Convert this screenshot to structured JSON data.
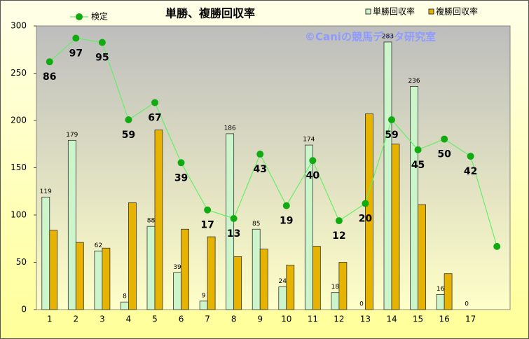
{
  "chart_data": {
    "type": "bar",
    "title": "単勝、複勝回収率",
    "watermark": "©Caniの競馬データ研究室",
    "categories": [
      "1",
      "2",
      "3",
      "4",
      "5",
      "6",
      "7",
      "8",
      "9",
      "10",
      "11",
      "12",
      "13",
      "14",
      "15",
      "16",
      "17",
      null
    ],
    "ylim": [
      0,
      300
    ],
    "yticks": [
      0,
      50,
      100,
      150,
      200,
      250,
      300
    ],
    "y2lim": [
      -29.4,
      102.7
    ],
    "legend": "top",
    "series": [
      {
        "name": "単勝回収率",
        "color": "#ccf5cc",
        "values": [
          119,
          179,
          62,
          8,
          88,
          39,
          9,
          186,
          85,
          24,
          174,
          18,
          0,
          283,
          236,
          16,
          0,
          null
        ],
        "value_labels": [
          "119",
          "179",
          "62",
          "8",
          "88",
          "39",
          "9",
          "186",
          "85",
          "24",
          "174",
          "18",
          "0",
          "283",
          "236",
          "16",
          "0",
          null
        ]
      },
      {
        "name": "複勝回収率",
        "color": "#e6b400",
        "values": [
          84,
          71,
          65,
          113,
          190,
          85,
          77,
          56,
          64,
          47,
          67,
          50,
          207,
          175,
          111,
          38,
          0,
          null
        ]
      },
      {
        "name": "検定",
        "type": "line",
        "axis": "y2",
        "color": "#66ee66",
        "marker_color": "#11aa11",
        "values": [
          86,
          97,
          95,
          59,
          67,
          39,
          17,
          13,
          43,
          19,
          40,
          12,
          20,
          59,
          45,
          50,
          42,
          0
        ],
        "value_labels": [
          "86",
          "97",
          "95",
          "59",
          "67",
          "39",
          "17",
          "13",
          "43",
          "19",
          "40",
          "12",
          "20",
          "59",
          "45",
          "50",
          "42",
          null
        ]
      }
    ]
  }
}
